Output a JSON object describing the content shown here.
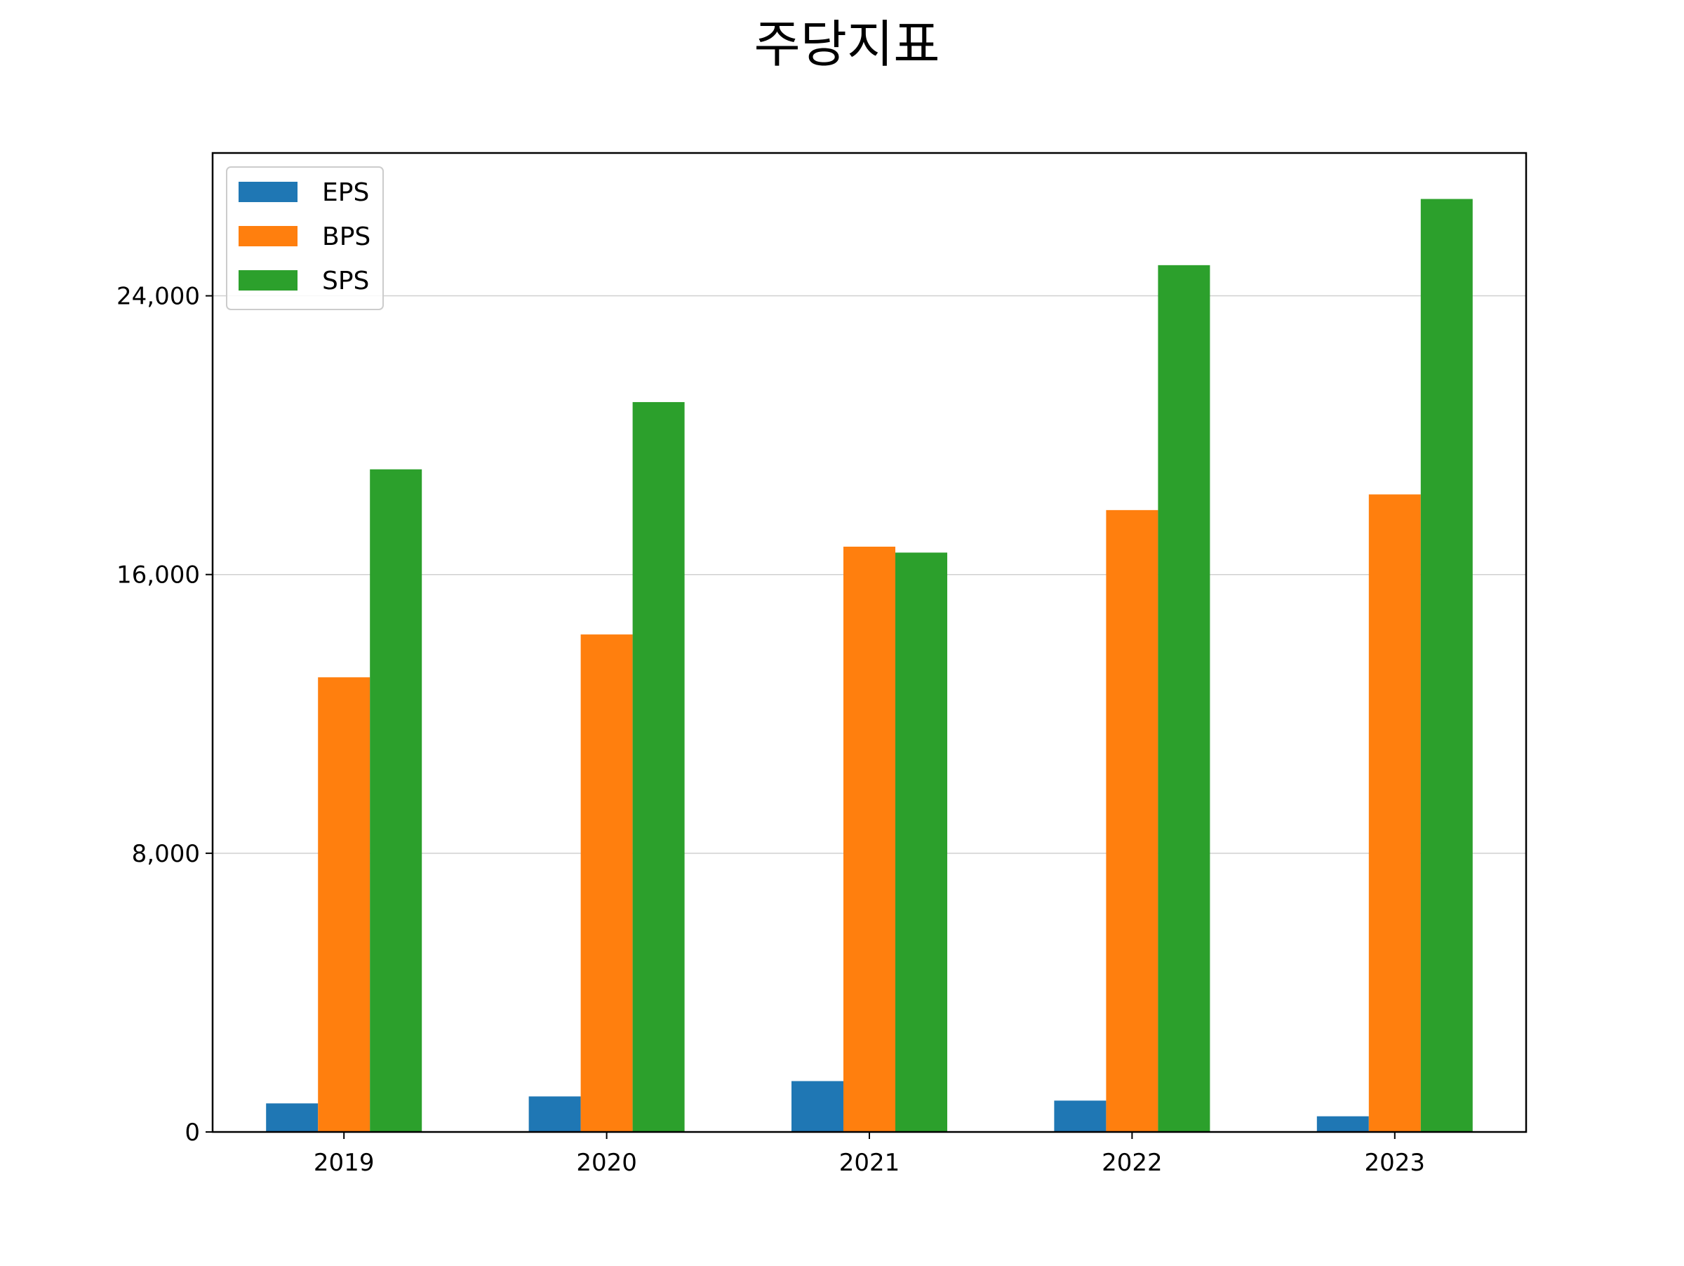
{
  "chart_data": {
    "type": "bar",
    "title": "주당지표",
    "xlabel": "",
    "ylabel": "",
    "categories": [
      "2019",
      "2020",
      "2021",
      "2022",
      "2023"
    ],
    "series": [
      {
        "name": "EPS",
        "color": "#1f77b4",
        "values": [
          820,
          1020,
          1460,
          900,
          450
        ]
      },
      {
        "name": "BPS",
        "color": "#ff7f0e",
        "values": [
          13050,
          14280,
          16800,
          17850,
          18300
        ]
      },
      {
        "name": "SPS",
        "color": "#2ca02c",
        "values": [
          19020,
          20950,
          16630,
          24880,
          26780
        ]
      }
    ],
    "ylim": [
      0,
      28100
    ],
    "yticks": [
      0,
      8000,
      16000,
      24000
    ],
    "ytick_labels": [
      "0",
      "8,000",
      "16,000",
      "24,000"
    ],
    "grid": {
      "axis": "y",
      "color": "#d0d0d0"
    },
    "legend": {
      "position": "top-left"
    }
  }
}
